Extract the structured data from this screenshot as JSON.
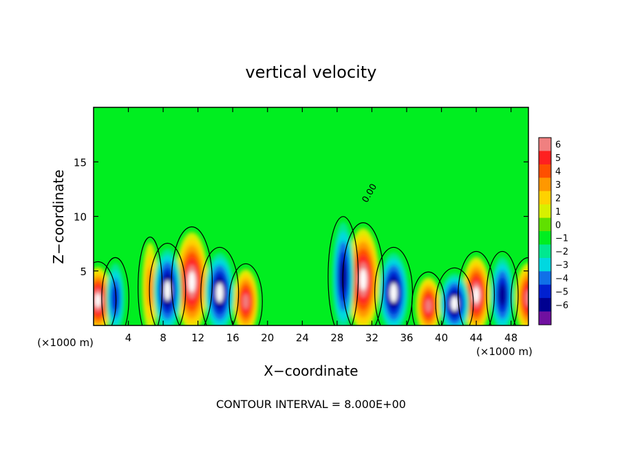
{
  "chart_data": {
    "type": "heatmap",
    "title": "vertical velocity",
    "xlabel": "X−coordinate",
    "ylabel": "Z−coordinate",
    "x_units": "(×1000 m)",
    "z_units": "(×1000 m)",
    "xlim": [
      0,
      50
    ],
    "ylim": [
      0,
      20
    ],
    "x_ticks": [
      4,
      8,
      12,
      16,
      20,
      24,
      28,
      32,
      36,
      40,
      44,
      48
    ],
    "y_ticks": [
      5,
      10,
      15
    ],
    "colorbar": {
      "levels": [
        6,
        5,
        4,
        3,
        2,
        1,
        0,
        -1,
        -2,
        -3,
        -4,
        -5,
        -6
      ],
      "labels": [
        "6",
        "5",
        "4",
        "3",
        "2",
        "1",
        "0",
        "−1",
        "−2",
        "−3",
        "−4",
        "−5",
        "−6"
      ],
      "colors": [
        "#f08080",
        "#ff2020",
        "#ff5000",
        "#ff9800",
        "#ffd200",
        "#d8f000",
        "#60e000",
        "#00ee20",
        "#00e890",
        "#00d8e0",
        "#1070e8",
        "#0020d0",
        "#000090",
        "#7010a0"
      ]
    },
    "contour_label": "0.00",
    "contour_interval_text": "CONTOUR INTERVAL = 8.000E+00",
    "updrafts": [
      {
        "x": 0.5,
        "z": 2.3,
        "w": 6.5
      },
      {
        "x": 6.5,
        "z": 3.5,
        "w": 2.5
      },
      {
        "x": 11.3,
        "z": 4.0,
        "w": 8.0
      },
      {
        "x": 17.5,
        "z": 2.2,
        "w": 5.5
      },
      {
        "x": 31.0,
        "z": 4.2,
        "w": 8.0
      },
      {
        "x": 38.5,
        "z": 1.8,
        "w": 5.5
      },
      {
        "x": 44.0,
        "z": 2.8,
        "w": 6.5
      },
      {
        "x": 50.0,
        "z": 2.5,
        "w": 6.0
      }
    ],
    "downdrafts": [
      {
        "x": 2.5,
        "z": 2.5,
        "w": -3.5
      },
      {
        "x": 8.5,
        "z": 3.2,
        "w": -6.5
      },
      {
        "x": 14.5,
        "z": 3.0,
        "w": -7.0
      },
      {
        "x": 28.7,
        "z": 4.5,
        "w": -4.5
      },
      {
        "x": 34.5,
        "z": 3.0,
        "w": -7.0
      },
      {
        "x": 41.5,
        "z": 2.0,
        "w": -7.0
      },
      {
        "x": 47.0,
        "z": 2.8,
        "w": -5.0
      }
    ]
  }
}
